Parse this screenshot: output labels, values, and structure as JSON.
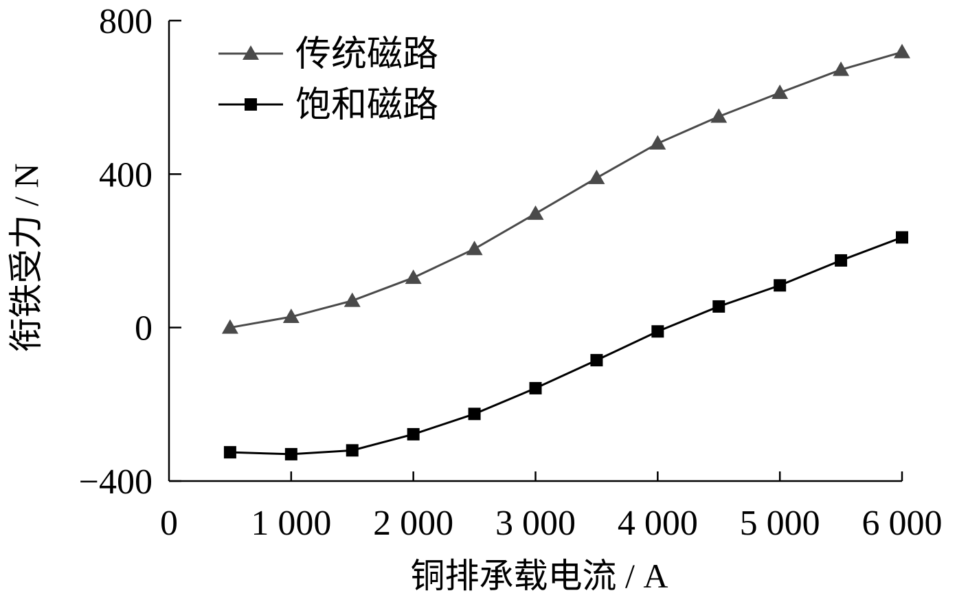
{
  "chart_data": {
    "type": "line",
    "title": "",
    "xlabel": "铜排承载电流 / A",
    "ylabel": "衔铁受力 / N",
    "xlim": [
      0,
      6000
    ],
    "ylim": [
      -400,
      800
    ],
    "x_ticks": [
      {
        "value": 0,
        "label": "0"
      },
      {
        "value": 1000,
        "label": "1 000"
      },
      {
        "value": 2000,
        "label": "2 000"
      },
      {
        "value": 3000,
        "label": "3 000"
      },
      {
        "value": 4000,
        "label": "4 000"
      },
      {
        "value": 5000,
        "label": "5 000"
      },
      {
        "value": 6000,
        "label": "6 000"
      }
    ],
    "y_ticks": [
      {
        "value": -400,
        "label": "−400"
      },
      {
        "value": 0,
        "label": "0"
      },
      {
        "value": 400,
        "label": "400"
      },
      {
        "value": 800,
        "label": "800"
      }
    ],
    "grid": false,
    "legend_position": "top-left",
    "series": [
      {
        "name": "传统磁路",
        "marker": "triangle",
        "color": "#4a4a4a",
        "x": [
          500,
          1000,
          1500,
          2000,
          2500,
          3000,
          3500,
          4000,
          4500,
          5000,
          5500,
          6000
        ],
        "values": [
          0,
          28,
          70,
          130,
          205,
          297,
          390,
          480,
          550,
          612,
          672,
          718
        ]
      },
      {
        "name": "饱和磁路",
        "marker": "square",
        "color": "#000000",
        "x": [
          500,
          1000,
          1500,
          2000,
          2500,
          3000,
          3500,
          4000,
          4500,
          5000,
          5500,
          6000
        ],
        "values": [
          -325,
          -330,
          -320,
          -278,
          -225,
          -158,
          -85,
          -10,
          55,
          110,
          175,
          235
        ]
      }
    ]
  }
}
